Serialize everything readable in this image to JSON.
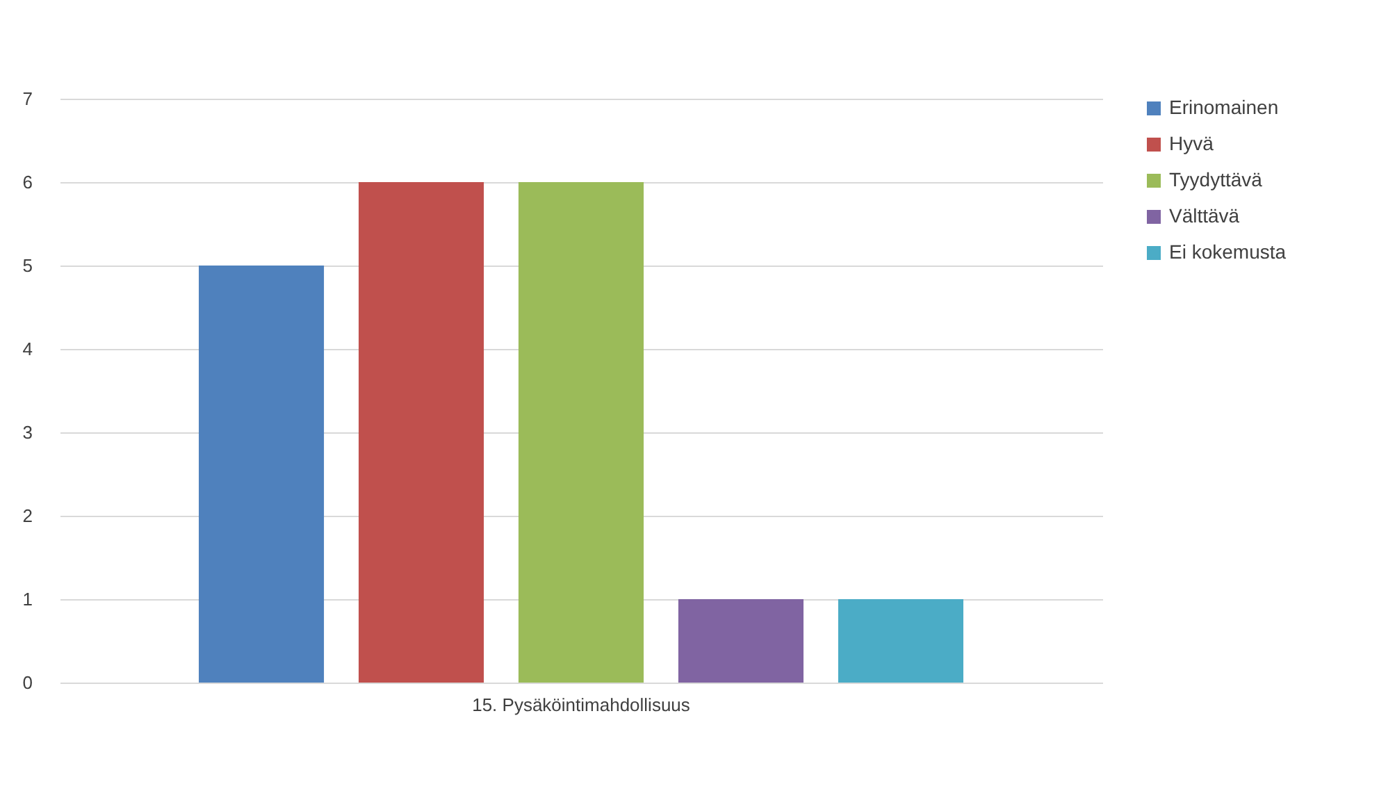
{
  "chart_data": {
    "type": "bar",
    "categories": [
      "15. Pysäköintimahdollisuus"
    ],
    "series": [
      {
        "name": "Erinomainen",
        "color": "#4f81bd",
        "values": [
          5
        ]
      },
      {
        "name": "Hyvä",
        "color": "#c0504d",
        "values": [
          6
        ]
      },
      {
        "name": "Tyydyttävä",
        "color": "#9bbb59",
        "values": [
          6
        ]
      },
      {
        "name": "Välttävä",
        "color": "#8064a2",
        "values": [
          1
        ]
      },
      {
        "name": "Ei kokemusta",
        "color": "#4bacc6",
        "values": [
          1
        ]
      }
    ],
    "ylim": [
      0,
      7
    ],
    "yticks": [
      0,
      1,
      2,
      3,
      4,
      5,
      6,
      7
    ],
    "grid": "y",
    "legend": "right"
  }
}
